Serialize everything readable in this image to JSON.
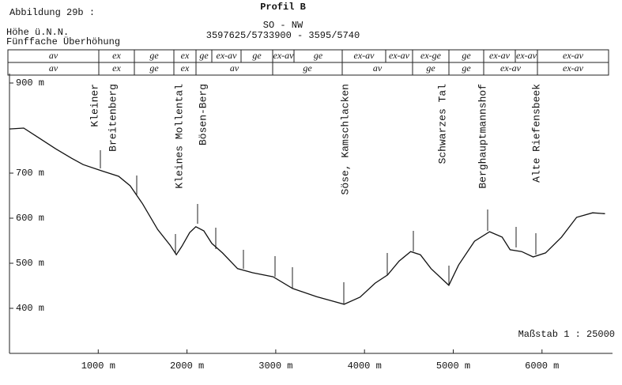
{
  "chart_data": {
    "type": "line",
    "figure_label": "Abbildung 29b :",
    "title": "Profil B",
    "subtitle": "SO - NW",
    "coordinates": "3597625/5733900 - 3595/5740",
    "ylabel": [
      "Höhe ü.N.N.",
      "Fünffache Überhöhung"
    ],
    "scale_note": "Maßstab 1 : 25000",
    "annotations": [
      "Kleiner",
      "Breitenberg",
      "Kleines Mollental",
      "Bösen-Berg",
      "Söse, Kamschlacken",
      "Schwarzes Tal",
      "Berghauptmannshof",
      "Alte Riefensbeek"
    ],
    "color": "#111111",
    "x": [
      0,
      160,
      340,
      520,
      700,
      830,
      1010,
      1230,
      1360,
      1500,
      1670,
      1810,
      1880,
      1940,
      2030,
      2100,
      2190,
      2280,
      2400,
      2570,
      2740,
      2970,
      3190,
      3460,
      3770,
      3950,
      4120,
      4260,
      4390,
      4520,
      4630,
      4750,
      4950,
      5060,
      5240,
      5410,
      5550,
      5640,
      5770,
      5900,
      6040,
      6220,
      6390,
      6570,
      6710
    ],
    "values": [
      798,
      800,
      777,
      754,
      733,
      719,
      707,
      693,
      672,
      632,
      575,
      540,
      519,
      537,
      568,
      581,
      572,
      544,
      523,
      488,
      479,
      470,
      444,
      426,
      409,
      425,
      456,
      474,
      505,
      526,
      519,
      488,
      451,
      496,
      549,
      570,
      558,
      530,
      526,
      514,
      523,
      558,
      602,
      612,
      610
    ],
    "xlim": [
      0,
      6790
    ],
    "ylim": [
      300,
      920
    ],
    "xticks": [
      {
        "value": 1000,
        "label": "1000 m"
      },
      {
        "value": 2000,
        "label": "2000 m"
      },
      {
        "value": 3000,
        "label": "3000 m"
      },
      {
        "value": 4000,
        "label": "4000 m"
      },
      {
        "value": 5000,
        "label": "5000 m"
      },
      {
        "value": 6000,
        "label": "6000 m"
      }
    ],
    "yticks": [
      {
        "value": 400,
        "label": "400 m"
      },
      {
        "value": 500,
        "label": "500 m"
      },
      {
        "value": 600,
        "label": "600 m"
      },
      {
        "value": 700,
        "label": "700 m"
      },
      {
        "value": 900,
        "label": "900 m"
      }
    ]
  },
  "table": {
    "rows": [
      [
        "av",
        "ex",
        "ge",
        "ex",
        "ge",
        "ex-av",
        "ge",
        "ex-av",
        "ge",
        "ex-av",
        "ex-av",
        "ex-ge",
        "ge",
        "ex-av",
        "ex-av",
        "ex-av"
      ],
      [
        "av",
        "ex",
        "ge",
        "ex",
        "av",
        "ge",
        "av",
        "ge",
        "ge",
        "ex-av",
        "ex-av"
      ]
    ]
  }
}
